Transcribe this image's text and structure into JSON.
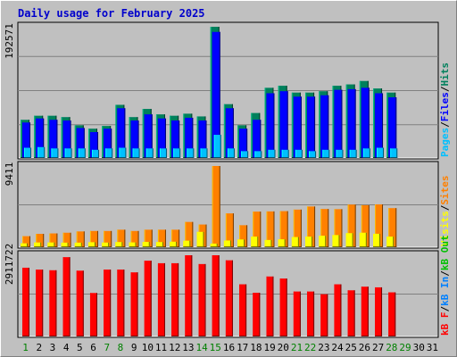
{
  "title": "Daily usage for February 2025",
  "colors": {
    "hits": "#00805c",
    "files": "#0000ff",
    "pages": "#00c0ff",
    "visits": "#ffff00",
    "sites": "#ff8000",
    "kb_in": "#0080ff",
    "kb_out": "#00c000",
    "kb_f": "#ff0000",
    "plot_bg": "#c0c0c0",
    "weekday_label": "#000000",
    "weekend_label": "#008000"
  },
  "chart_data": [
    {
      "type": "bar",
      "name": "hits-files-pages",
      "x": [
        1,
        2,
        3,
        4,
        5,
        6,
        7,
        8,
        9,
        10,
        11,
        12,
        13,
        14,
        15,
        16,
        17,
        18,
        19,
        20,
        21,
        22,
        23,
        24,
        25,
        26,
        27,
        28
      ],
      "ymax_label": "192571",
      "ylim": [
        0,
        192571
      ],
      "legend": [
        {
          "text": "Pages",
          "color_key": "pages"
        },
        {
          "text": "Files",
          "color_key": "files"
        },
        {
          "text": "Hits",
          "color_key": "hits"
        }
      ],
      "series": [
        {
          "name": "Hits",
          "color_key": "hits",
          "values": [
            56000,
            62000,
            62000,
            60000,
            48000,
            43000,
            47000,
            78000,
            60000,
            72000,
            64000,
            62000,
            65000,
            61000,
            192571,
            79000,
            48000,
            66000,
            103000,
            106000,
            96000,
            96000,
            98000,
            106000,
            108000,
            113000,
            102000,
            96000
          ]
        },
        {
          "name": "Files",
          "color_key": "files",
          "values": [
            52000,
            58000,
            56000,
            55000,
            44000,
            38000,
            43000,
            73000,
            55000,
            64000,
            58000,
            55000,
            59000,
            55000,
            185000,
            73000,
            43000,
            56000,
            95000,
            98000,
            90000,
            90000,
            92000,
            100000,
            101000,
            103000,
            95000,
            89000
          ]
        },
        {
          "name": "Pages",
          "color_key": "pages",
          "values": [
            15000,
            16000,
            14000,
            14000,
            14000,
            12000,
            14000,
            15000,
            14000,
            14000,
            14000,
            14000,
            14000,
            14000,
            34000,
            14000,
            10000,
            10000,
            12000,
            12000,
            12000,
            10000,
            12000,
            12000,
            12000,
            14000,
            15000,
            14000
          ]
        }
      ]
    },
    {
      "type": "bar",
      "name": "sites-visits",
      "x": [
        1,
        2,
        3,
        4,
        5,
        6,
        7,
        8,
        9,
        10,
        11,
        12,
        13,
        14,
        15,
        16,
        17,
        18,
        19,
        20,
        21,
        22,
        23,
        24,
        25,
        26,
        27,
        28
      ],
      "ymax_label": "9411",
      "ylim": [
        0,
        9411
      ],
      "legend": [
        {
          "text": "Visits",
          "color_key": "visits"
        },
        {
          "text": "Sites",
          "color_key": "sites"
        }
      ],
      "series": [
        {
          "name": "Sites",
          "color_key": "sites",
          "values": [
            1280,
            1550,
            1600,
            1680,
            1830,
            1880,
            1880,
            2030,
            1880,
            2030,
            2030,
            2030,
            2930,
            2630,
            9411,
            3920,
            2550,
            4130,
            4150,
            4180,
            4360,
            4720,
            4430,
            4410,
            4940,
            4870,
            4960,
            4530
          ]
        },
        {
          "name": "Visits",
          "color_key": "visits",
          "values": [
            450,
            550,
            550,
            530,
            530,
            580,
            540,
            600,
            560,
            620,
            600,
            640,
            760,
            1780,
            420,
            780,
            900,
            1230,
            840,
            920,
            1180,
            1230,
            1330,
            1410,
            1630,
            1680,
            1560,
            1230
          ]
        }
      ]
    },
    {
      "type": "bar",
      "name": "kbytes",
      "x": [
        1,
        2,
        3,
        4,
        5,
        6,
        7,
        8,
        9,
        10,
        11,
        12,
        13,
        14,
        15,
        16,
        17,
        18,
        19,
        20,
        21,
        22,
        23,
        24,
        25,
        26,
        27,
        28
      ],
      "ymax_label": "2911722",
      "ylim": [
        0,
        2911722
      ],
      "legend": [
        {
          "text": "kB F",
          "color_key": "kb_f"
        },
        {
          "text": "kB In",
          "color_key": "kb_in"
        },
        {
          "text": "kB Out",
          "color_key": "kb_out"
        }
      ],
      "series": [
        {
          "name": "kB F",
          "color_key": "kb_f",
          "values": [
            2465000,
            2398000,
            2374000,
            2843000,
            2359000,
            1559000,
            2398000,
            2398000,
            2298000,
            2716000,
            2626000,
            2626000,
            2911722,
            2596000,
            2911722,
            2731000,
            1870000,
            1567000,
            2150000,
            2077000,
            1612000,
            1612000,
            1514000,
            1870000,
            1655000,
            1785000,
            1761000,
            1582000
          ]
        }
      ]
    }
  ],
  "x_axis": {
    "labels": [
      "1",
      "2",
      "3",
      "4",
      "5",
      "6",
      "7",
      "8",
      "9",
      "10",
      "11",
      "12",
      "13",
      "14",
      "15",
      "16",
      "17",
      "18",
      "19",
      "20",
      "21",
      "22",
      "23",
      "24",
      "25",
      "26",
      "27",
      "28",
      "29",
      "30",
      "31"
    ],
    "weekend": [
      1,
      7,
      8,
      14,
      15,
      21,
      22,
      28,
      29
    ]
  }
}
